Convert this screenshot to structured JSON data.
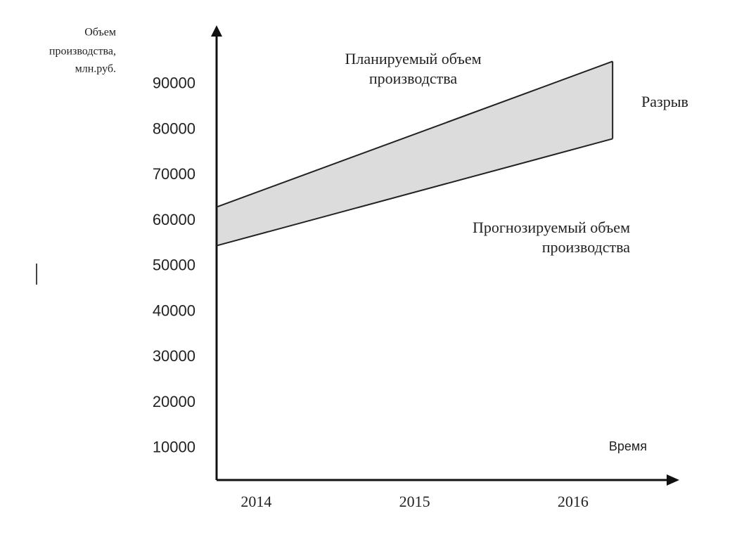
{
  "chart_data": {
    "type": "band",
    "y_label": [
      "Объем",
      "производства,",
      "млн.руб."
    ],
    "x_label": "Время",
    "x": [
      2013.75,
      2016.25
    ],
    "xlim": [
      2013.75,
      2016.6
    ],
    "xticks": [
      2014,
      2015,
      2016
    ],
    "ylim": [
      3000,
      100000
    ],
    "yticks": [
      10000,
      20000,
      30000,
      40000,
      50000,
      60000,
      70000,
      80000,
      90000
    ],
    "series": [
      {
        "name": "Планируемый объем производства",
        "color": "#222222",
        "values": [
          63000,
          95000
        ]
      },
      {
        "name": "Прогнозируемый объем производства",
        "color": "#222222",
        "values": [
          54500,
          78000
        ]
      }
    ],
    "band_color": "#dcdcdc",
    "gap_label": "Разрыв"
  }
}
